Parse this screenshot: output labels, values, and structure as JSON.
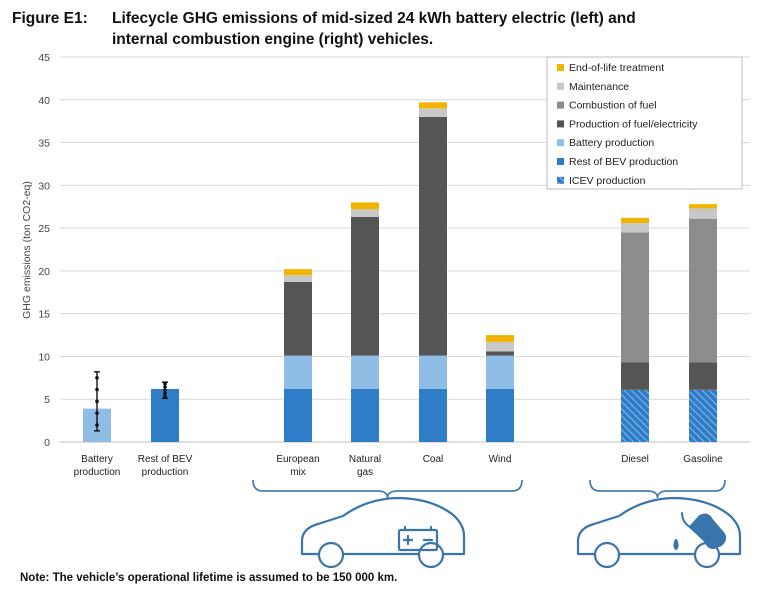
{
  "figure": {
    "label": "Figure E1:",
    "title_line1": "Lifecycle GHG emissions of mid-sized 24 kWh battery electric (left) and",
    "title_line2": "internal combustion engine (right) vehicles.",
    "note": "Note: The vehicle’s operational lifetime is assumed to be 150 000 km."
  },
  "colors": {
    "end_of_life": "#f2b400",
    "maintenance": "#c8c8c8",
    "combustion": "#8c8c8c",
    "production_fuel": "#555555",
    "battery": "#8fbde6",
    "rest_bev": "#2f7cc7",
    "icev": "#2f7cc7",
    "grid": "#d9d9d9",
    "brace": "#4a7fb5"
  },
  "icons": [
    "electric-car-icon",
    "petrol-car-icon"
  ],
  "chart_data": {
    "type": "bar",
    "stacked": true,
    "ylabel": "GHG emissions (ton CO2-eq)",
    "ylim": [
      0,
      45
    ],
    "yticks": [
      0,
      5,
      10,
      15,
      20,
      25,
      30,
      35,
      40,
      45
    ],
    "grid": true,
    "legend_position": "top-right",
    "categories": [
      [
        "Battery",
        "production"
      ],
      [
        "Rest of BEV",
        "production"
      ],
      [
        "European",
        "mix"
      ],
      [
        "Natural",
        "gas"
      ],
      [
        "Coal"
      ],
      [
        "Wind"
      ],
      [
        "Diesel"
      ],
      [
        "Gasoline"
      ]
    ],
    "series": [
      {
        "name": "ICEV production",
        "key": "icev",
        "hatched": true,
        "values": [
          0,
          0,
          0,
          0,
          0,
          0,
          6.1,
          6.1
        ]
      },
      {
        "name": "Rest of BEV production",
        "key": "rest_bev",
        "values": [
          0,
          6.2,
          6.2,
          6.2,
          6.2,
          6.2,
          0,
          0
        ]
      },
      {
        "name": "Battery production",
        "key": "battery",
        "values": [
          3.9,
          0,
          3.9,
          3.9,
          3.9,
          3.9,
          0,
          0
        ]
      },
      {
        "name": "Production of fuel/electricity",
        "key": "production_fuel",
        "values": [
          0,
          0,
          8.6,
          16.2,
          27.9,
          0.5,
          3.2,
          3.2
        ]
      },
      {
        "name": "Combustion of fuel",
        "key": "combustion",
        "values": [
          0,
          0,
          0,
          0,
          0,
          0,
          15.2,
          16.8
        ]
      },
      {
        "name": "Maintenance",
        "key": "maintenance",
        "values": [
          0,
          0,
          0.8,
          0.9,
          1.0,
          1.1,
          1.1,
          1.2
        ]
      },
      {
        "name": "End-of-life treatment",
        "key": "end_of_life",
        "values": [
          0,
          0,
          0.7,
          0.8,
          0.7,
          0.8,
          0.6,
          0.5
        ]
      }
    ],
    "error_bars": [
      {
        "category": 0,
        "low": 1.3,
        "high": 8.2
      },
      {
        "category": 1,
        "low": 5.1,
        "high": 7.0
      }
    ],
    "groups": [
      {
        "name": "battery electric",
        "categories": [
          2,
          3,
          4,
          5
        ],
        "icon": "electric-car-icon"
      },
      {
        "name": "internal combustion engine",
        "categories": [
          6,
          7
        ],
        "icon": "petrol-car-icon"
      }
    ]
  }
}
